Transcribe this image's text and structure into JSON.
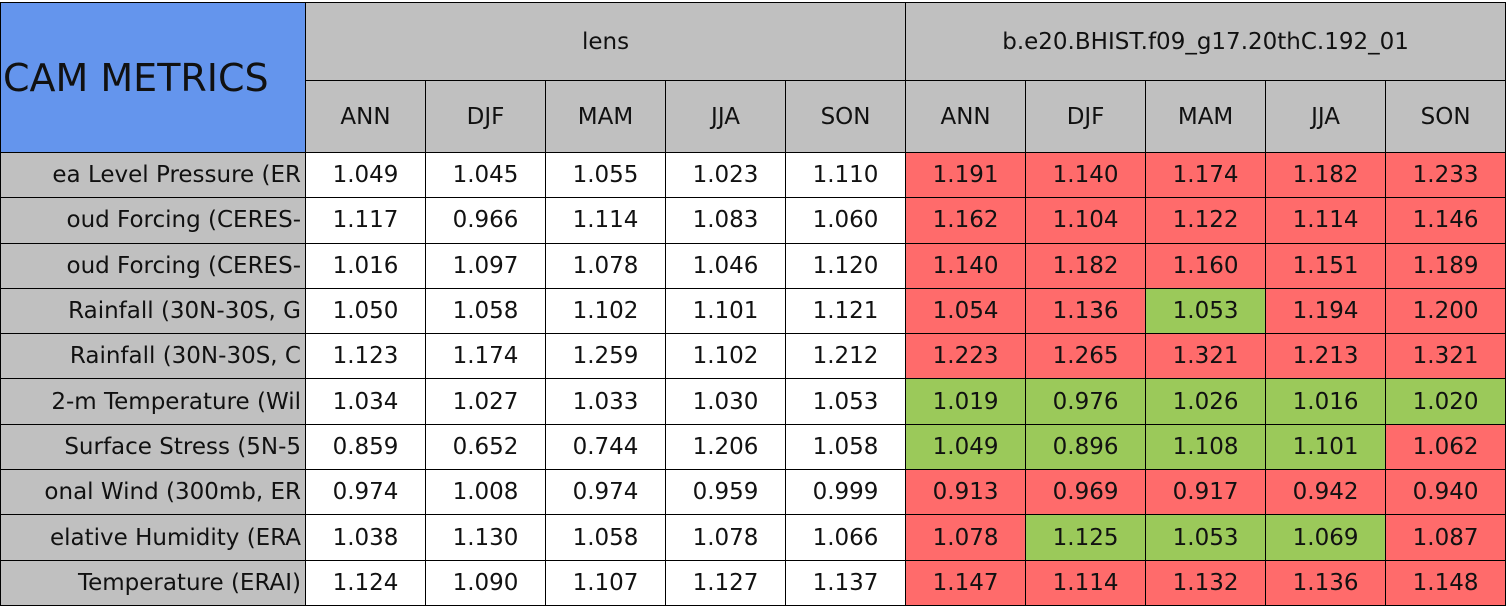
{
  "corner": "CAM METRICS",
  "groups": [
    {
      "name": "lens",
      "seasons": [
        "ANN",
        "DJF",
        "MAM",
        "JJA",
        "SON"
      ]
    },
    {
      "name": "b.e20.BHIST.f09_g17.20thC.192_01",
      "seasons": [
        "ANN",
        "DJF",
        "MAM",
        "JJA",
        "SON"
      ]
    }
  ],
  "rows": [
    {
      "label": "ea Level Pressure (ER",
      "cells": [
        "1.049",
        "1.045",
        "1.055",
        "1.023",
        "1.110",
        "1.191",
        "1.140",
        "1.174",
        "1.182",
        "1.233"
      ],
      "colors": [
        "#ffffff",
        "#ffffff",
        "#ffffff",
        "#ffffff",
        "#ffffff",
        "#ff6b6b",
        "#ff6b6b",
        "#ff6b6b",
        "#ff6b6b",
        "#ff6b6b"
      ]
    },
    {
      "label": "oud Forcing (CERES-",
      "cells": [
        "1.117",
        "0.966",
        "1.114",
        "1.083",
        "1.060",
        "1.162",
        "1.104",
        "1.122",
        "1.114",
        "1.146"
      ],
      "colors": [
        "#ffffff",
        "#ffffff",
        "#ffffff",
        "#ffffff",
        "#ffffff",
        "#ff6b6b",
        "#ff6b6b",
        "#ff6b6b",
        "#ff6b6b",
        "#ff6b6b"
      ]
    },
    {
      "label": "oud Forcing (CERES-",
      "cells": [
        "1.016",
        "1.097",
        "1.078",
        "1.046",
        "1.120",
        "1.140",
        "1.182",
        "1.160",
        "1.151",
        "1.189"
      ],
      "colors": [
        "#ffffff",
        "#ffffff",
        "#ffffff",
        "#ffffff",
        "#ffffff",
        "#ff6b6b",
        "#ff6b6b",
        "#ff6b6b",
        "#ff6b6b",
        "#ff6b6b"
      ]
    },
    {
      "label": "Rainfall (30N-30S, G",
      "cells": [
        "1.050",
        "1.058",
        "1.102",
        "1.101",
        "1.121",
        "1.054",
        "1.136",
        "1.053",
        "1.194",
        "1.200"
      ],
      "colors": [
        "#ffffff",
        "#ffffff",
        "#ffffff",
        "#ffffff",
        "#ffffff",
        "#ff6b6b",
        "#ff6b6b",
        "#9bc95a",
        "#ff6b6b",
        "#ff6b6b"
      ]
    },
    {
      "label": "Rainfall (30N-30S, C",
      "cells": [
        "1.123",
        "1.174",
        "1.259",
        "1.102",
        "1.212",
        "1.223",
        "1.265",
        "1.321",
        "1.213",
        "1.321"
      ],
      "colors": [
        "#ffffff",
        "#ffffff",
        "#ffffff",
        "#ffffff",
        "#ffffff",
        "#ff6b6b",
        "#ff6b6b",
        "#ff6b6b",
        "#ff6b6b",
        "#ff6b6b"
      ]
    },
    {
      "label": "2-m Temperature (Wil",
      "cells": [
        "1.034",
        "1.027",
        "1.033",
        "1.030",
        "1.053",
        "1.019",
        "0.976",
        "1.026",
        "1.016",
        "1.020"
      ],
      "colors": [
        "#ffffff",
        "#ffffff",
        "#ffffff",
        "#ffffff",
        "#ffffff",
        "#9bc95a",
        "#9bc95a",
        "#9bc95a",
        "#9bc95a",
        "#9bc95a"
      ]
    },
    {
      "label": "Surface Stress (5N-5",
      "cells": [
        "0.859",
        "0.652",
        "0.744",
        "1.206",
        "1.058",
        "1.049",
        "0.896",
        "1.108",
        "1.101",
        "1.062"
      ],
      "colors": [
        "#ffffff",
        "#ffffff",
        "#ffffff",
        "#ffffff",
        "#ffffff",
        "#9bc95a",
        "#9bc95a",
        "#9bc95a",
        "#9bc95a",
        "#ff6b6b"
      ]
    },
    {
      "label": "onal Wind (300mb, ER",
      "cells": [
        "0.974",
        "1.008",
        "0.974",
        "0.959",
        "0.999",
        "0.913",
        "0.969",
        "0.917",
        "0.942",
        "0.940"
      ],
      "colors": [
        "#ffffff",
        "#ffffff",
        "#ffffff",
        "#ffffff",
        "#ffffff",
        "#ff6b6b",
        "#ff6b6b",
        "#ff6b6b",
        "#ff6b6b",
        "#ff6b6b"
      ]
    },
    {
      "label": "elative Humidity (ERA",
      "cells": [
        "1.038",
        "1.130",
        "1.058",
        "1.078",
        "1.066",
        "1.078",
        "1.125",
        "1.053",
        "1.069",
        "1.087"
      ],
      "colors": [
        "#ffffff",
        "#ffffff",
        "#ffffff",
        "#ffffff",
        "#ffffff",
        "#ff6b6b",
        "#9bc95a",
        "#9bc95a",
        "#9bc95a",
        "#ff6b6b"
      ]
    },
    {
      "label": "Temperature (ERAI)",
      "cells": [
        "1.124",
        "1.090",
        "1.107",
        "1.127",
        "1.137",
        "1.147",
        "1.114",
        "1.132",
        "1.136",
        "1.148"
      ],
      "colors": [
        "#ffffff",
        "#ffffff",
        "#ffffff",
        "#ffffff",
        "#ffffff",
        "#ff6b6b",
        "#ff6b6b",
        "#ff6b6b",
        "#ff6b6b",
        "#ff6b6b"
      ]
    }
  ]
}
